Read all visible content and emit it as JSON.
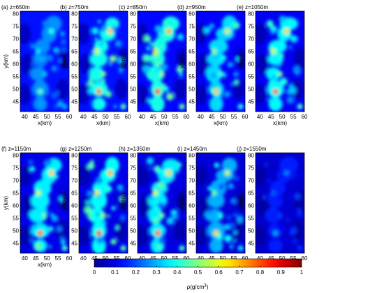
{
  "chart_data": {
    "type": "heatmap",
    "xlabel": "x(km)",
    "ylabel": "y(km)",
    "xlim": [
      38,
      60
    ],
    "ylim": [
      41,
      81
    ],
    "xticks": [
      40,
      45,
      50,
      55,
      60
    ],
    "yticks": [
      45,
      50,
      55,
      60,
      65,
      70,
      75,
      80
    ],
    "colorbar": {
      "label": "ρ(g/cm",
      "label_sup": "3",
      "label_end": ")",
      "range": [
        0,
        1
      ],
      "ticks": [
        "0",
        "0.1",
        "0.2",
        "0.3",
        "0.4",
        "0.5",
        "0.6",
        "0.7",
        "0.8",
        "0.9",
        "1"
      ],
      "colormap": [
        "#00008f",
        "#0000ff",
        "#00ffff",
        "#ffff00",
        "#ff0000",
        "#800000"
      ]
    },
    "panels": [
      {
        "label": "(a) z=650m",
        "background": 0.14,
        "peak": 0.5
      },
      {
        "label": "(b) z=750m",
        "background": 0.14,
        "peak": 0.85
      },
      {
        "label": "(c) z=850m",
        "background": 0.13,
        "peak": 0.9
      },
      {
        "label": "(d) z=950m",
        "background": 0.12,
        "peak": 0.75
      },
      {
        "label": "(e) z=1050m",
        "background": 0.11,
        "peak": 0.85
      },
      {
        "label": "(f) z=1150m",
        "background": 0.1,
        "peak": 0.85
      },
      {
        "label": "(g) z=1250m",
        "background": 0.1,
        "peak": 0.9
      },
      {
        "label": "(h) z=1350m",
        "background": 0.09,
        "peak": 0.85
      },
      {
        "label": "(i) z=1450m",
        "background": 0.08,
        "peak": 0.7
      },
      {
        "label": "(j) z=1550m",
        "background": 0.07,
        "peak": 0.3
      }
    ]
  }
}
